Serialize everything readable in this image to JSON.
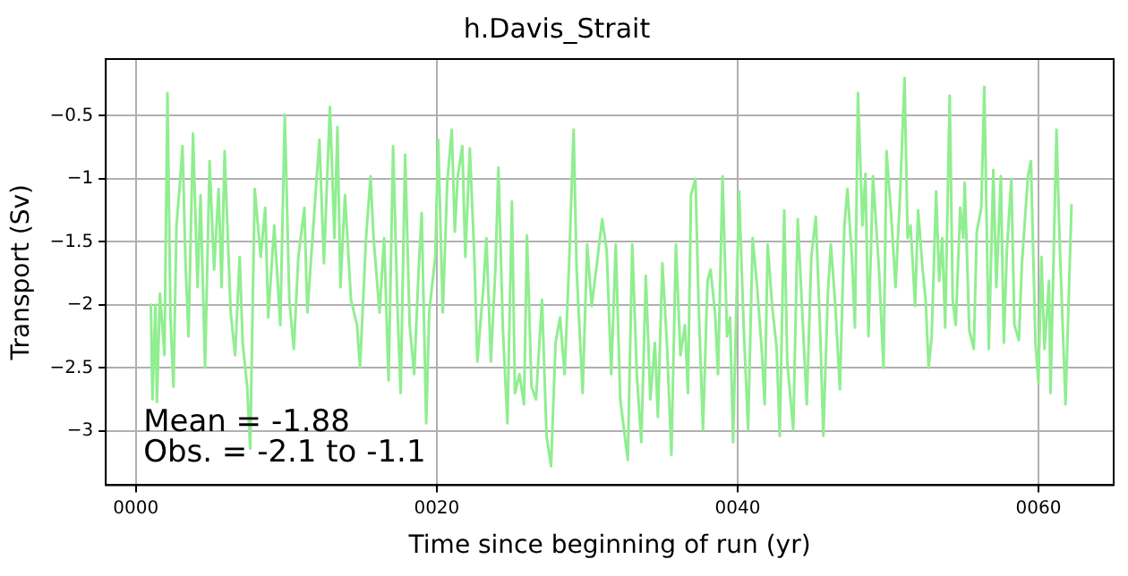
{
  "chart_data": {
    "type": "line",
    "title": "h.Davis_Strait",
    "xlabel": "Time since beginning of run (yr)",
    "ylabel": "Transport (Sv)",
    "xlim": [
      -2,
      65
    ],
    "xticks": [
      {
        "value": 0,
        "label": "0000"
      },
      {
        "value": 20,
        "label": "0020"
      },
      {
        "value": 40,
        "label": "0040"
      },
      {
        "value": 60,
        "label": "0060"
      }
    ],
    "ylim": [
      -3.43,
      -0.05
    ],
    "yticks": [
      -3.0,
      -2.5,
      -2.0,
      -1.5,
      -1.0,
      -0.5
    ],
    "grid": true,
    "annotations": [
      "Mean = -1.88",
      "Obs. = -2.1 to -1.1"
    ],
    "series": [
      {
        "color": "#90ee90",
        "x": [
          1.0,
          1.1,
          1.3,
          1.4,
          1.6,
          1.9,
          2.1,
          2.3,
          2.5,
          2.7,
          2.9,
          3.1,
          3.3,
          3.5,
          3.8,
          4.1,
          4.3,
          4.6,
          4.9,
          5.2,
          5.5,
          5.7,
          5.9,
          6.3,
          6.6,
          6.9,
          7.1,
          7.4,
          7.6,
          7.9,
          8.3,
          8.6,
          8.8,
          9.2,
          9.6,
          9.9,
          10.2,
          10.5,
          10.8,
          11.2,
          11.4,
          11.8,
          12.2,
          12.5,
          12.9,
          13.2,
          13.4,
          13.6,
          13.9,
          14.3,
          14.7,
          14.9,
          15.3,
          15.6,
          15.8,
          16.2,
          16.5,
          16.8,
          17.1,
          17.4,
          17.6,
          17.9,
          18.2,
          18.5,
          18.8,
          19.0,
          19.3,
          19.5,
          19.9,
          20.1,
          20.4,
          20.7,
          21.0,
          21.2,
          21.4,
          21.7,
          21.9,
          22.2,
          22.5,
          22.7,
          23.1,
          23.3,
          23.6,
          23.9,
          24.1,
          24.4,
          24.7,
          25.0,
          25.2,
          25.5,
          25.8,
          26.0,
          26.3,
          26.6,
          27.0,
          27.3,
          27.6,
          27.9,
          28.2,
          28.5,
          28.8,
          29.1,
          29.3,
          29.7,
          30.0,
          30.3,
          30.7,
          31.0,
          31.3,
          31.6,
          31.9,
          32.2,
          32.7,
          33.0,
          33.3,
          33.6,
          33.9,
          34.2,
          34.5,
          34.7,
          35.0,
          35.3,
          35.6,
          35.9,
          36.2,
          36.5,
          36.7,
          36.9,
          37.2,
          37.4,
          37.7,
          38.0,
          38.2,
          38.5,
          38.7,
          39.0,
          39.3,
          39.5,
          39.7,
          40.1,
          40.4,
          40.7,
          41.0,
          41.3,
          41.6,
          41.8,
          42.0,
          42.3,
          42.6,
          42.8,
          43.1,
          43.3,
          43.7,
          44.0,
          44.3,
          44.6,
          44.9,
          45.2,
          45.5,
          45.7,
          46.0,
          46.2,
          46.5,
          46.8,
          47.1,
          47.3,
          47.6,
          47.8,
          48.0,
          48.3,
          48.5,
          48.7,
          49.0,
          49.4,
          49.7,
          49.9,
          50.2,
          50.5,
          50.8,
          51.1,
          51.3,
          51.5,
          51.8,
          52.0,
          52.3,
          52.5,
          52.7,
          52.9,
          53.2,
          53.4,
          53.6,
          53.8,
          54.1,
          54.3,
          54.5,
          54.8,
          55.0,
          55.1,
          55.4,
          55.7,
          55.9,
          56.2,
          56.4,
          56.7,
          57.0,
          57.2,
          57.5,
          57.7,
          57.9,
          58.2,
          58.4,
          58.7,
          58.9,
          59.3,
          59.5,
          59.8,
          60.0,
          60.2,
          60.4,
          60.7,
          60.8,
          61.2,
          61.4,
          61.8,
          62.2
        ],
        "values": [
          -1.99,
          -2.75,
          -2.0,
          -2.77,
          -1.91,
          -2.4,
          -0.32,
          -2.1,
          -2.65,
          -1.37,
          -1.08,
          -0.74,
          -1.67,
          -2.25,
          -0.64,
          -1.86,
          -1.13,
          -2.5,
          -0.86,
          -1.72,
          -1.08,
          -1.86,
          -0.78,
          -2.06,
          -2.4,
          -1.62,
          -2.3,
          -2.65,
          -3.14,
          -1.08,
          -1.62,
          -1.23,
          -2.1,
          -1.37,
          -2.16,
          -0.49,
          -1.96,
          -2.35,
          -1.62,
          -1.23,
          -2.06,
          -1.37,
          -0.69,
          -1.67,
          -0.43,
          -1.47,
          -0.59,
          -1.86,
          -1.13,
          -1.96,
          -2.16,
          -2.5,
          -1.47,
          -0.98,
          -1.47,
          -2.06,
          -1.47,
          -2.6,
          -0.74,
          -2.06,
          -2.7,
          -0.81,
          -2.16,
          -2.55,
          -1.72,
          -1.27,
          -2.94,
          -2.06,
          -1.62,
          -0.69,
          -2.06,
          -1.03,
          -0.61,
          -1.42,
          -0.98,
          -0.74,
          -1.62,
          -0.76,
          -1.62,
          -2.45,
          -1.86,
          -1.47,
          -2.45,
          -1.72,
          -0.91,
          -2.2,
          -2.94,
          -1.18,
          -2.7,
          -2.55,
          -2.79,
          -1.45,
          -2.65,
          -2.75,
          -1.96,
          -3.04,
          -3.28,
          -2.3,
          -2.1,
          -2.55,
          -1.67,
          -0.61,
          -1.72,
          -2.7,
          -1.52,
          -2.01,
          -1.62,
          -1.32,
          -1.57,
          -2.55,
          -1.52,
          -2.75,
          -3.23,
          -1.52,
          -2.55,
          -3.09,
          -1.77,
          -2.75,
          -2.3,
          -2.89,
          -1.67,
          -2.3,
          -3.19,
          -1.52,
          -2.4,
          -2.16,
          -2.7,
          -1.13,
          -1.0,
          -1.96,
          -2.99,
          -1.81,
          -1.72,
          -2.06,
          -2.55,
          -0.98,
          -2.25,
          -2.1,
          -3.09,
          -1.1,
          -2.16,
          -2.99,
          -1.47,
          -1.86,
          -2.35,
          -2.79,
          -1.52,
          -2.01,
          -2.35,
          -3.04,
          -1.25,
          -2.45,
          -2.99,
          -1.32,
          -2.06,
          -2.79,
          -1.62,
          -1.3,
          -2.25,
          -3.04,
          -1.91,
          -1.52,
          -2.01,
          -2.67,
          -1.37,
          -1.08,
          -1.62,
          -2.18,
          -0.32,
          -1.37,
          -0.96,
          -2.25,
          -0.98,
          -1.72,
          -2.5,
          -0.78,
          -1.27,
          -1.86,
          -1.13,
          -0.2,
          -1.47,
          -1.37,
          -2.01,
          -1.25,
          -1.72,
          -1.96,
          -2.5,
          -2.25,
          -1.1,
          -1.81,
          -1.47,
          -2.18,
          -0.34,
          -1.96,
          -2.16,
          -1.23,
          -1.47,
          -1.03,
          -2.2,
          -2.35,
          -1.42,
          -1.23,
          -0.27,
          -2.35,
          -0.93,
          -1.86,
          -0.98,
          -2.3,
          -1.57,
          -1.0,
          -2.16,
          -2.28,
          -1.67,
          -0.98,
          -0.86,
          -2.3,
          -2.62,
          -1.62,
          -2.35,
          -1.81,
          -2.7,
          -0.61,
          -1.47,
          -2.79,
          -1.2
        ]
      }
    ]
  }
}
